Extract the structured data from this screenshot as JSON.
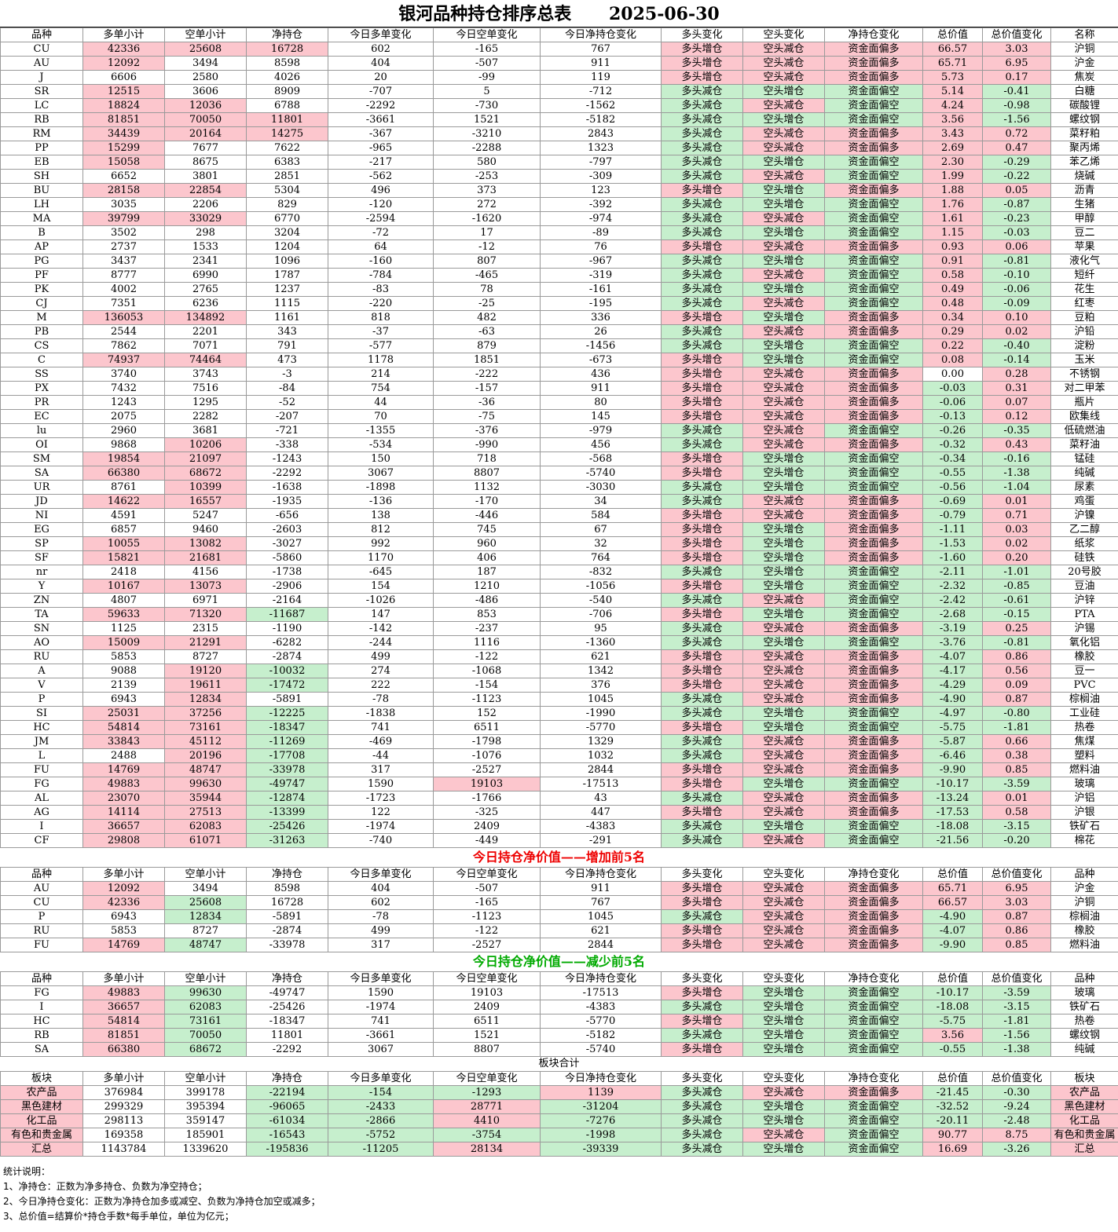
{
  "title": "银河品种持仓排序总表",
  "date": "2025-06-30",
  "headers": [
    "品种",
    "多单小计",
    "空单小计",
    "净持仓",
    "今日多单变化",
    "今日空单变化",
    "今日净持仓变化",
    "多头变化",
    "空头变化",
    "净持仓变化",
    "总价值",
    "总价值变化",
    "名称"
  ],
  "main_rows": [
    [
      "CU",
      "42336",
      "25608",
      "16728",
      "602",
      "-165",
      "767",
      "多头增仓",
      "空头减仓",
      "资金面偏多",
      "66.57",
      "3.03",
      "沪铜"
    ],
    [
      "AU",
      "12092",
      "3494",
      "8598",
      "404",
      "-507",
      "911",
      "多头增仓",
      "空头减仓",
      "资金面偏多",
      "65.71",
      "6.95",
      "沪金"
    ],
    [
      "J",
      "6606",
      "2580",
      "4026",
      "20",
      "-99",
      "119",
      "多头增仓",
      "空头减仓",
      "资金面偏多",
      "5.73",
      "0.17",
      "焦炭"
    ],
    [
      "SR",
      "12515",
      "3606",
      "8909",
      "-707",
      "5",
      "-712",
      "多头减仓",
      "空头增仓",
      "资金面偏空",
      "5.14",
      "-0.41",
      "白糖"
    ],
    [
      "LC",
      "18824",
      "12036",
      "6788",
      "-2292",
      "-730",
      "-1562",
      "多头减仓",
      "空头减仓",
      "资金面偏空",
      "4.24",
      "-0.98",
      "碳酸锂"
    ],
    [
      "RB",
      "81851",
      "70050",
      "11801",
      "-3661",
      "1521",
      "-5182",
      "多头减仓",
      "空头增仓",
      "资金面偏空",
      "3.56",
      "-1.56",
      "螺纹钢"
    ],
    [
      "RM",
      "34439",
      "20164",
      "14275",
      "-367",
      "-3210",
      "2843",
      "多头减仓",
      "空头减仓",
      "资金面偏多",
      "3.43",
      "0.72",
      "菜籽粕"
    ],
    [
      "PP",
      "15299",
      "7677",
      "7622",
      "-965",
      "-2288",
      "1323",
      "多头减仓",
      "空头减仓",
      "资金面偏多",
      "2.69",
      "0.47",
      "聚丙烯"
    ],
    [
      "EB",
      "15058",
      "8675",
      "6383",
      "-217",
      "580",
      "-797",
      "多头减仓",
      "空头增仓",
      "资金面偏空",
      "2.30",
      "-0.29",
      "苯乙烯"
    ],
    [
      "SH",
      "6652",
      "3801",
      "2851",
      "-562",
      "-253",
      "-309",
      "多头减仓",
      "空头减仓",
      "资金面偏空",
      "1.99",
      "-0.22",
      "烧碱"
    ],
    [
      "BU",
      "28158",
      "22854",
      "5304",
      "496",
      "373",
      "123",
      "多头增仓",
      "空头增仓",
      "资金面偏多",
      "1.88",
      "0.05",
      "沥青"
    ],
    [
      "LH",
      "3035",
      "2206",
      "829",
      "-120",
      "272",
      "-392",
      "多头减仓",
      "空头增仓",
      "资金面偏空",
      "1.76",
      "-0.87",
      "生猪"
    ],
    [
      "MA",
      "39799",
      "33029",
      "6770",
      "-2594",
      "-1620",
      "-974",
      "多头减仓",
      "空头减仓",
      "资金面偏空",
      "1.61",
      "-0.23",
      "甲醇"
    ],
    [
      "B",
      "3502",
      "298",
      "3204",
      "-72",
      "17",
      "-89",
      "多头减仓",
      "空头增仓",
      "资金面偏空",
      "1.15",
      "-0.03",
      "豆二"
    ],
    [
      "AP",
      "2737",
      "1533",
      "1204",
      "64",
      "-12",
      "76",
      "多头增仓",
      "空头减仓",
      "资金面偏多",
      "0.93",
      "0.06",
      "苹果"
    ],
    [
      "PG",
      "3437",
      "2341",
      "1096",
      "-160",
      "807",
      "-967",
      "多头减仓",
      "空头增仓",
      "资金面偏空",
      "0.91",
      "-0.81",
      "液化气"
    ],
    [
      "PF",
      "8777",
      "6990",
      "1787",
      "-784",
      "-465",
      "-319",
      "多头减仓",
      "空头减仓",
      "资金面偏空",
      "0.58",
      "-0.10",
      "短纤"
    ],
    [
      "PK",
      "4002",
      "2765",
      "1237",
      "-83",
      "78",
      "-161",
      "多头减仓",
      "空头增仓",
      "资金面偏空",
      "0.49",
      "-0.06",
      "花生"
    ],
    [
      "CJ",
      "7351",
      "6236",
      "1115",
      "-220",
      "-25",
      "-195",
      "多头减仓",
      "空头减仓",
      "资金面偏空",
      "0.48",
      "-0.09",
      "红枣"
    ],
    [
      "M",
      "136053",
      "134892",
      "1161",
      "818",
      "482",
      "336",
      "多头增仓",
      "空头增仓",
      "资金面偏多",
      "0.34",
      "0.10",
      "豆粕"
    ],
    [
      "PB",
      "2544",
      "2201",
      "343",
      "-37",
      "-63",
      "26",
      "多头减仓",
      "空头减仓",
      "资金面偏多",
      "0.29",
      "0.02",
      "沪铅"
    ],
    [
      "CS",
      "7862",
      "7071",
      "791",
      "-577",
      "879",
      "-1456",
      "多头减仓",
      "空头增仓",
      "资金面偏空",
      "0.22",
      "-0.40",
      "淀粉"
    ],
    [
      "C",
      "74937",
      "74464",
      "473",
      "1178",
      "1851",
      "-673",
      "多头增仓",
      "空头增仓",
      "资金面偏空",
      "0.08",
      "-0.14",
      "玉米"
    ],
    [
      "SS",
      "3740",
      "3743",
      "-3",
      "214",
      "-222",
      "436",
      "多头增仓",
      "空头减仓",
      "资金面偏多",
      "0.00",
      "0.28",
      "不锈钢"
    ],
    [
      "PX",
      "7432",
      "7516",
      "-84",
      "754",
      "-157",
      "911",
      "多头增仓",
      "空头减仓",
      "资金面偏多",
      "-0.03",
      "0.31",
      "对二甲苯"
    ],
    [
      "PR",
      "1243",
      "1295",
      "-52",
      "44",
      "-36",
      "80",
      "多头增仓",
      "空头减仓",
      "资金面偏多",
      "-0.06",
      "0.07",
      "瓶片"
    ],
    [
      "EC",
      "2075",
      "2282",
      "-207",
      "70",
      "-75",
      "145",
      "多头增仓",
      "空头减仓",
      "资金面偏多",
      "-0.13",
      "0.12",
      "欧集线"
    ],
    [
      "lu",
      "2960",
      "3681",
      "-721",
      "-1355",
      "-376",
      "-979",
      "多头减仓",
      "空头减仓",
      "资金面偏空",
      "-0.26",
      "-0.35",
      "低硫燃油"
    ],
    [
      "OI",
      "9868",
      "10206",
      "-338",
      "-534",
      "-990",
      "456",
      "多头减仓",
      "空头减仓",
      "资金面偏多",
      "-0.32",
      "0.43",
      "菜籽油"
    ],
    [
      "SM",
      "19854",
      "21097",
      "-1243",
      "150",
      "718",
      "-568",
      "多头增仓",
      "空头增仓",
      "资金面偏空",
      "-0.34",
      "-0.16",
      "锰硅"
    ],
    [
      "SA",
      "66380",
      "68672",
      "-2292",
      "3067",
      "8807",
      "-5740",
      "多头增仓",
      "空头增仓",
      "资金面偏空",
      "-0.55",
      "-1.38",
      "纯碱"
    ],
    [
      "UR",
      "8761",
      "10399",
      "-1638",
      "-1898",
      "1132",
      "-3030",
      "多头减仓",
      "空头增仓",
      "资金面偏空",
      "-0.56",
      "-1.04",
      "尿素"
    ],
    [
      "JD",
      "14622",
      "16557",
      "-1935",
      "-136",
      "-170",
      "34",
      "多头减仓",
      "空头减仓",
      "资金面偏多",
      "-0.69",
      "0.01",
      "鸡蛋"
    ],
    [
      "NI",
      "4591",
      "5247",
      "-656",
      "138",
      "-446",
      "584",
      "多头增仓",
      "空头减仓",
      "资金面偏多",
      "-0.79",
      "0.71",
      "沪镍"
    ],
    [
      "EG",
      "6857",
      "9460",
      "-2603",
      "812",
      "745",
      "67",
      "多头增仓",
      "空头增仓",
      "资金面偏多",
      "-1.11",
      "0.03",
      "乙二醇"
    ],
    [
      "SP",
      "10055",
      "13082",
      "-3027",
      "992",
      "960",
      "32",
      "多头增仓",
      "空头增仓",
      "资金面偏多",
      "-1.53",
      "0.02",
      "纸浆"
    ],
    [
      "SF",
      "15821",
      "21681",
      "-5860",
      "1170",
      "406",
      "764",
      "多头增仓",
      "空头增仓",
      "资金面偏多",
      "-1.60",
      "0.20",
      "硅铁"
    ],
    [
      "nr",
      "2418",
      "4156",
      "-1738",
      "-645",
      "187",
      "-832",
      "多头减仓",
      "空头增仓",
      "资金面偏空",
      "-2.11",
      "-1.01",
      "20号胶"
    ],
    [
      "Y",
      "10167",
      "13073",
      "-2906",
      "154",
      "1210",
      "-1056",
      "多头增仓",
      "空头增仓",
      "资金面偏空",
      "-2.32",
      "-0.85",
      "豆油"
    ],
    [
      "ZN",
      "4807",
      "6971",
      "-2164",
      "-1026",
      "-486",
      "-540",
      "多头减仓",
      "空头减仓",
      "资金面偏空",
      "-2.42",
      "-0.61",
      "沪锌"
    ],
    [
      "TA",
      "59633",
      "71320",
      "-11687",
      "147",
      "853",
      "-706",
      "多头增仓",
      "空头增仓",
      "资金面偏空",
      "-2.68",
      "-0.15",
      "PTA"
    ],
    [
      "SN",
      "1125",
      "2315",
      "-1190",
      "-142",
      "-237",
      "95",
      "多头减仓",
      "空头减仓",
      "资金面偏多",
      "-3.19",
      "0.25",
      "沪锡"
    ],
    [
      "AO",
      "15009",
      "21291",
      "-6282",
      "-244",
      "1116",
      "-1360",
      "多头减仓",
      "空头增仓",
      "资金面偏空",
      "-3.76",
      "-0.81",
      "氧化铝"
    ],
    [
      "RU",
      "5853",
      "8727",
      "-2874",
      "499",
      "-122",
      "621",
      "多头增仓",
      "空头减仓",
      "资金面偏多",
      "-4.07",
      "0.86",
      "橡胶"
    ],
    [
      "A",
      "9088",
      "19120",
      "-10032",
      "274",
      "-1068",
      "1342",
      "多头增仓",
      "空头减仓",
      "资金面偏多",
      "-4.17",
      "0.56",
      "豆一"
    ],
    [
      "V",
      "2139",
      "19611",
      "-17472",
      "222",
      "-154",
      "376",
      "多头增仓",
      "空头减仓",
      "资金面偏多",
      "-4.29",
      "0.09",
      "PVC"
    ],
    [
      "P",
      "6943",
      "12834",
      "-5891",
      "-78",
      "-1123",
      "1045",
      "多头减仓",
      "空头减仓",
      "资金面偏多",
      "-4.90",
      "0.87",
      "棕榈油"
    ],
    [
      "SI",
      "25031",
      "37256",
      "-12225",
      "-1838",
      "152",
      "-1990",
      "多头减仓",
      "空头增仓",
      "资金面偏空",
      "-4.97",
      "-0.80",
      "工业硅"
    ],
    [
      "HC",
      "54814",
      "73161",
      "-18347",
      "741",
      "6511",
      "-5770",
      "多头增仓",
      "空头增仓",
      "资金面偏空",
      "-5.75",
      "-1.81",
      "热卷"
    ],
    [
      "JM",
      "33843",
      "45112",
      "-11269",
      "-469",
      "-1798",
      "1329",
      "多头减仓",
      "空头减仓",
      "资金面偏多",
      "-5.87",
      "0.66",
      "焦煤"
    ],
    [
      "L",
      "2488",
      "20196",
      "-17708",
      "-44",
      "-1076",
      "1032",
      "多头减仓",
      "空头减仓",
      "资金面偏多",
      "-6.46",
      "0.38",
      "塑料"
    ],
    [
      "FU",
      "14769",
      "48747",
      "-33978",
      "317",
      "-2527",
      "2844",
      "多头增仓",
      "空头减仓",
      "资金面偏多",
      "-9.90",
      "0.85",
      "燃料油"
    ],
    [
      "FG",
      "49883",
      "99630",
      "-49747",
      "1590",
      "19103",
      "-17513",
      "多头增仓",
      "空头增仓",
      "资金面偏空",
      "-10.17",
      "-3.59",
      "玻璃"
    ],
    [
      "AL",
      "23070",
      "35944",
      "-12874",
      "-1723",
      "-1766",
      "43",
      "多头减仓",
      "空头减仓",
      "资金面偏多",
      "-13.24",
      "0.01",
      "沪铝"
    ],
    [
      "AG",
      "14114",
      "27513",
      "-13399",
      "122",
      "-325",
      "447",
      "多头增仓",
      "空头减仓",
      "资金面偏多",
      "-17.53",
      "0.58",
      "沪银"
    ],
    [
      "I",
      "36657",
      "62083",
      "-25426",
      "-1974",
      "2409",
      "-4383",
      "多头减仓",
      "空头增仓",
      "资金面偏空",
      "-18.08",
      "-3.15",
      "铁矿石"
    ],
    [
      "CF",
      "29808",
      "61071",
      "-31263",
      "-740",
      "-449",
      "-291",
      "多头减仓",
      "空头减仓",
      "资金面偏空",
      "-21.56",
      "-0.20",
      "棉花"
    ]
  ],
  "increase_title": "今日持仓净价值——增加前5名",
  "increase_headers": [
    "品种",
    "多单小计",
    "空单小计",
    "净持仓",
    "今日多单变化",
    "今日空单变化",
    "今日净持仓变化",
    "多头变化",
    "空头变化",
    "净持仓变化",
    "总价值",
    "总价值变化",
    "品种"
  ],
  "increase_rows": [
    [
      "AU",
      "12092",
      "3494",
      "8598",
      "404",
      "-507",
      "911",
      "多头增仓",
      "空头减仓",
      "资金面偏多",
      "65.71",
      "6.95",
      "沪金"
    ],
    [
      "CU",
      "42336",
      "25608",
      "16728",
      "602",
      "-165",
      "767",
      "多头增仓",
      "空头减仓",
      "资金面偏多",
      "66.57",
      "3.03",
      "沪铜"
    ],
    [
      "P",
      "6943",
      "12834",
      "-5891",
      "-78",
      "-1123",
      "1045",
      "多头减仓",
      "空头减仓",
      "资金面偏多",
      "-4.90",
      "0.87",
      "棕榈油"
    ],
    [
      "RU",
      "5853",
      "8727",
      "-2874",
      "499",
      "-122",
      "621",
      "多头增仓",
      "空头减仓",
      "资金面偏多",
      "-4.07",
      "0.86",
      "橡胶"
    ],
    [
      "FU",
      "14769",
      "48747",
      "-33978",
      "317",
      "-2527",
      "2844",
      "多头增仓",
      "空头减仓",
      "资金面偏多",
      "-9.90",
      "0.85",
      "燃料油"
    ]
  ],
  "decrease_title": "今日持仓净价值——减少前5名",
  "decrease_headers": [
    "品种",
    "多单小计",
    "空单小计",
    "净持仓",
    "今日多单变化",
    "今日空单变化",
    "今日净持仓变化",
    "多头变化",
    "空头变化",
    "净持仓变化",
    "总价值",
    "总价值变化",
    "品种"
  ],
  "decrease_rows": [
    [
      "FG",
      "49883",
      "99630",
      "-49747",
      "1590",
      "19103",
      "-17513",
      "多头增仓",
      "空头增仓",
      "资金面偏空",
      "-10.17",
      "-3.59",
      "玻璃"
    ],
    [
      "I",
      "36657",
      "62083",
      "-25426",
      "-1974",
      "2409",
      "-4383",
      "多头减仓",
      "空头增仓",
      "资金面偏空",
      "-18.08",
      "-3.15",
      "铁矿石"
    ],
    [
      "HC",
      "54814",
      "73161",
      "-18347",
      "741",
      "6511",
      "-5770",
      "多头增仓",
      "空头增仓",
      "资金面偏空",
      "-5.75",
      "-1.81",
      "热卷"
    ],
    [
      "RB",
      "81851",
      "70050",
      "11801",
      "-3661",
      "1521",
      "-5182",
      "多头减仓",
      "空头增仓",
      "资金面偏空",
      "3.56",
      "-1.56",
      "螺纹钢"
    ],
    [
      "SA",
      "66380",
      "68672",
      "-2292",
      "3067",
      "8807",
      "-5740",
      "多头增仓",
      "空头增仓",
      "资金面偏空",
      "-0.55",
      "-1.38",
      "纯碱"
    ]
  ],
  "sector_title": "板块合计",
  "sector_headers": [
    "板块",
    "多单小计",
    "空单小计",
    "净持仓",
    "今日多单变化",
    "今日空单变化",
    "今日净持仓变化",
    "多头变化",
    "空头变化",
    "净持仓变化",
    "总价值",
    "总价值变化",
    "板块"
  ],
  "sector_rows": [
    [
      "农产品",
      "376984",
      "399178",
      "-22194",
      "-154",
      "-1293",
      "1139",
      "多头减仓",
      "空头减仓",
      "资金面偏多",
      "-21.45",
      "-0.30",
      "农产品"
    ],
    [
      "黑色建材",
      "299329",
      "395394",
      "-96065",
      "-2433",
      "28771",
      "-31204",
      "多头减仓",
      "空头增仓",
      "资金面偏空",
      "-32.52",
      "-9.24",
      "黑色建材"
    ],
    [
      "化工品",
      "298113",
      "359147",
      "-61034",
      "-2866",
      "4410",
      "-7276",
      "多头减仓",
      "空头增仓",
      "资金面偏空",
      "-20.11",
      "-2.48",
      "化工品"
    ],
    [
      "有色和贵金属",
      "169358",
      "185901",
      "-16543",
      "-5752",
      "-3754",
      "-1998",
      "多头减仓",
      "空头减仓",
      "资金面偏空",
      "90.77",
      "8.75",
      "有色和贵金属"
    ],
    [
      "汇总",
      "1143784",
      "1339620",
      "-195836",
      "-11205",
      "28134",
      "-39339",
      "多头减仓",
      "空头增仓",
      "资金面偏空",
      "16.69",
      "-3.26",
      "汇总"
    ]
  ],
  "notes": [
    "统计说明：",
    "1、净持仓：正数为净多持仓、负数为净空持仓；",
    "2、今日净持仓变化：正数为净持仓加多或减空、负数为净持仓加空或减多；",
    "3、总价值=结算价*持仓手数*每手单位，单位为亿元；"
  ],
  "colors": {
    "red_fill": "#fcc6cd",
    "green_fill": "#c6efcd",
    "increase_title": "#ee0000",
    "decrease_title": "#00aa00"
  }
}
